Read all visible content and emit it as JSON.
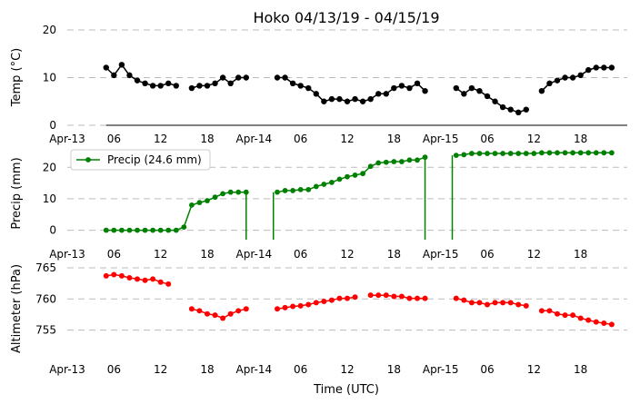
{
  "title": "Hoko 04/13/19 - 04/15/19",
  "xlabel": "Time (UTC)",
  "x_ticks": [
    "Apr-13",
    "06",
    "12",
    "18",
    "Apr-14",
    "06",
    "12",
    "18",
    "Apr-15",
    "06",
    "12",
    "18"
  ],
  "colors": {
    "temp": "#000000",
    "precip": "#008000",
    "altimeter": "#ff0000",
    "grid": "#bbbbbb"
  },
  "chart_data": [
    {
      "type": "line",
      "ylabel": "Temp (°C)",
      "ylim": [
        0,
        20
      ],
      "yticks": [
        0,
        10,
        20
      ],
      "xlim": [
        0,
        72
      ],
      "x_unit": "hours since Apr-13 00:00 UTC",
      "grid": "y",
      "series": [
        {
          "x": [
            5,
            6,
            7,
            8,
            9,
            10,
            11,
            12,
            13,
            14,
            null,
            16,
            17,
            18,
            19,
            20,
            21,
            22,
            23,
            null,
            27,
            28,
            29,
            30,
            31,
            32,
            33,
            34,
            35,
            36,
            37,
            38,
            39,
            40,
            41,
            42,
            43,
            44,
            45,
            46,
            null,
            50,
            51,
            52,
            53,
            54,
            55,
            56,
            57,
            58,
            59,
            null,
            61,
            62,
            63,
            64,
            65,
            66,
            67,
            68,
            69,
            70
          ],
          "values": [
            12.1,
            10.5,
            12.7,
            10.5,
            9.4,
            8.8,
            8.3,
            8.3,
            8.8,
            8.3,
            null,
            7.8,
            8.3,
            8.3,
            8.8,
            10,
            8.8,
            10,
            10,
            null,
            10,
            10,
            8.8,
            8.3,
            7.8,
            6.6,
            5,
            5.5,
            5.5,
            5,
            5.5,
            5,
            5.5,
            6.6,
            6.6,
            7.8,
            8.3,
            7.8,
            8.8,
            7.2,
            null,
            7.8,
            6.6,
            7.8,
            7.2,
            6.1,
            5,
            3.8,
            3.3,
            2.7,
            3.3,
            null,
            7.2,
            8.8,
            9.4,
            10,
            10,
            10.5,
            11.6,
            12.1,
            12.1,
            12.1
          ]
        }
      ]
    },
    {
      "type": "line",
      "ylabel": "Precip (mm)",
      "ylim": [
        -3,
        27
      ],
      "yticks": [
        0,
        10,
        20
      ],
      "xlim": [
        0,
        72
      ],
      "grid": "y",
      "legend": "top-left",
      "series": [
        {
          "name": "Precip (24.6 mm)",
          "x": [
            5,
            6,
            7,
            8,
            9,
            10,
            11,
            12,
            13,
            14,
            15,
            16,
            17,
            18,
            19,
            20,
            21,
            22,
            23,
            null,
            27,
            28,
            29,
            30,
            31,
            32,
            33,
            34,
            35,
            36,
            37,
            38,
            39,
            40,
            41,
            42,
            43,
            44,
            45,
            46,
            null,
            50,
            51,
            52,
            53,
            54,
            55,
            56,
            57,
            58,
            59,
            60,
            61,
            62,
            63,
            64,
            65,
            66,
            67,
            68,
            69,
            70
          ],
          "values": [
            0,
            0,
            0,
            0,
            0,
            0,
            0,
            0,
            0,
            0,
            1,
            8,
            8.8,
            9.4,
            10.5,
            11.6,
            12.1,
            12.1,
            12.1,
            null,
            12.1,
            12.6,
            12.6,
            12.9,
            12.9,
            13.9,
            14.6,
            15.2,
            16.2,
            17,
            17.5,
            18,
            20.3,
            21.4,
            21.6,
            21.8,
            21.8,
            22.3,
            22.3,
            23.2,
            null,
            23.8,
            24,
            24.4,
            24.4,
            24.4,
            24.4,
            24.4,
            24.4,
            24.4,
            24.4,
            24.4,
            24.6,
            24.6,
            24.6,
            24.6,
            24.6,
            24.6,
            24.6,
            24.6,
            24.6,
            24.6
          ],
          "drops_to_floor_at_x": [
            23,
            26.5,
            46,
            49.5
          ]
        }
      ]
    },
    {
      "type": "line",
      "ylabel": "Altimeter (hPa)",
      "ylim": [
        751,
        765
      ],
      "yticks": [
        755,
        760,
        765
      ],
      "xlim": [
        0,
        72
      ],
      "grid": "y",
      "series": [
        {
          "x": [
            5,
            6,
            7,
            8,
            9,
            10,
            11,
            12,
            13,
            null,
            16,
            17,
            18,
            19,
            20,
            21,
            22,
            23,
            null,
            27,
            28,
            29,
            30,
            31,
            32,
            33,
            34,
            35,
            36,
            37,
            null,
            39,
            40,
            41,
            42,
            43,
            44,
            45,
            46,
            null,
            50,
            51,
            52,
            53,
            54,
            55,
            56,
            57,
            58,
            59,
            null,
            61,
            62,
            63,
            64,
            65,
            66,
            67,
            68,
            69,
            70
          ],
          "values": [
            763.7,
            763.9,
            763.7,
            763.4,
            763.2,
            763,
            763.2,
            762.7,
            762.4,
            null,
            758.4,
            758.1,
            757.6,
            757.4,
            756.9,
            757.6,
            758.1,
            758.4,
            null,
            758.4,
            758.6,
            758.8,
            758.9,
            759.1,
            759.4,
            759.6,
            759.8,
            760.1,
            760.1,
            760.3,
            null,
            760.6,
            760.6,
            760.6,
            760.4,
            760.4,
            760.1,
            760.1,
            760.1,
            null,
            760.1,
            759.8,
            759.4,
            759.4,
            759.1,
            759.4,
            759.4,
            759.4,
            759.1,
            758.9,
            null,
            758.1,
            758.1,
            757.6,
            757.4,
            757.4,
            756.9,
            756.6,
            756.3,
            756.1,
            755.9
          ]
        }
      ]
    }
  ]
}
